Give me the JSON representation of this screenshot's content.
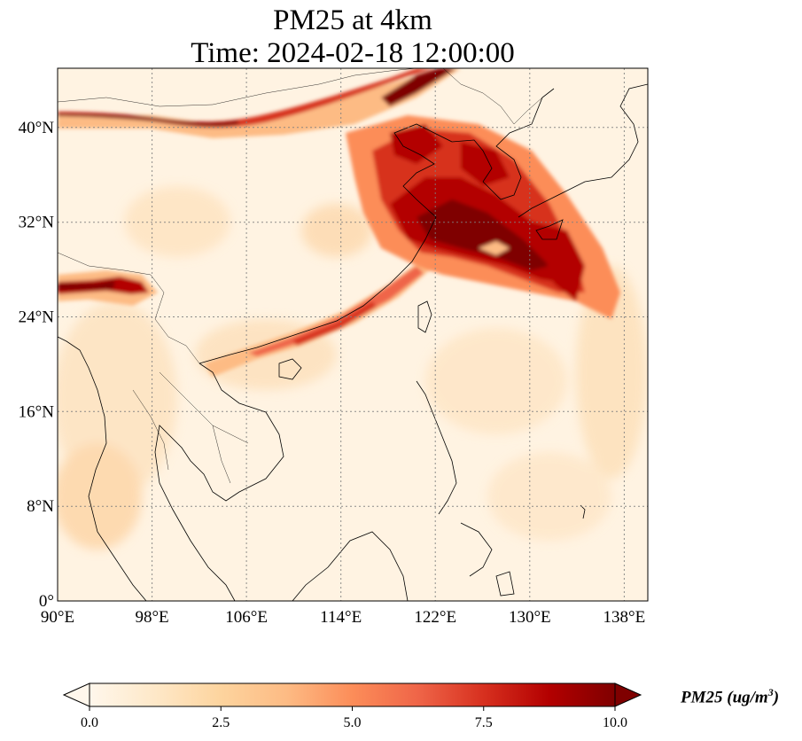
{
  "title": {
    "line1": "PM25 at 4km",
    "line2": "Time: 2024-02-18 12:00:00"
  },
  "map": {
    "projection": "PlateCarree",
    "extent_lon": [
      90,
      140
    ],
    "extent_lat": [
      0,
      45
    ],
    "gridlines": "dotted gray",
    "lon_ticks": [
      90,
      98,
      106,
      114,
      122,
      130,
      138
    ],
    "lon_tick_labels": [
      "90°E",
      "98°E",
      "106°E",
      "114°E",
      "122°E",
      "130°E",
      "138°E"
    ],
    "lat_ticks": [
      0,
      8,
      16,
      24,
      32,
      40
    ],
    "lat_tick_labels": [
      "0°",
      "8°N",
      "16°N",
      "24°N",
      "32°N",
      "40°N"
    ],
    "basemap": "coastlines and country borders"
  },
  "colorbar": {
    "label_main": "PM25 (ug/m",
    "label_sup": "3",
    "label_close": ")",
    "colormap": "OrRd",
    "colors": [
      "#fff7ec",
      "#fee8c8",
      "#fdd49e",
      "#fdbb84",
      "#fc8d59",
      "#ef6548",
      "#d7301f",
      "#b30000",
      "#7f0000"
    ],
    "range": [
      0.0,
      10.0
    ],
    "ticks": [
      0.0,
      2.5,
      5.0,
      7.5,
      10.0
    ],
    "tick_labels": [
      "0.0",
      "2.5",
      "5.0",
      "7.5",
      "10.0"
    ],
    "extend": "both"
  },
  "features": [
    {
      "name": "plume over North China Plain, Korea and East China Sea",
      "max_pm25": 10
    },
    {
      "name": "westerly band across north of map near 40°N",
      "max_pm25": 10
    },
    {
      "name": "band over Himalaya / NE India near 26°N",
      "max_pm25": 10
    },
    {
      "name": "south China coastal band",
      "max_pm25": 7
    },
    {
      "name": "Bay of Bengal / Myanmar haze",
      "max_pm25": 3
    }
  ]
}
